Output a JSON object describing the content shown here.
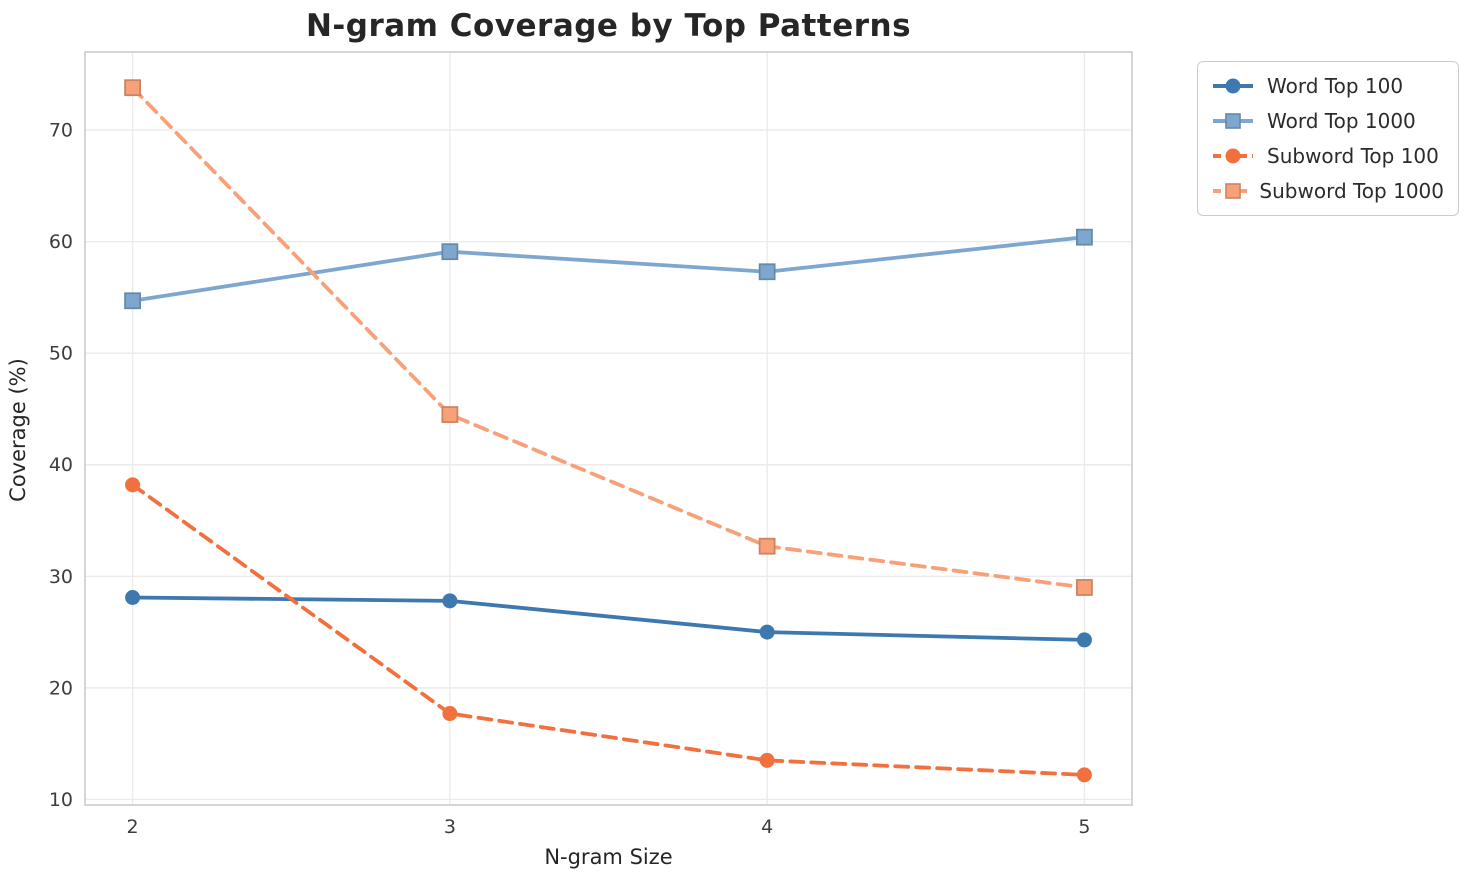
{
  "chart_data": {
    "type": "line",
    "title": "N-gram Coverage by Top Patterns",
    "xlabel": "N-gram Size",
    "ylabel": "Coverage (%)",
    "x": [
      2,
      3,
      4,
      5
    ],
    "x_tick_labels": [
      "2",
      "3",
      "4",
      "5"
    ],
    "y_ticks": [
      10,
      20,
      30,
      40,
      50,
      60,
      70
    ],
    "xlim": [
      1.85,
      5.15
    ],
    "ylim": [
      9.5,
      77.0
    ],
    "grid": true,
    "legend_position": "outside-upper-right",
    "series": [
      {
        "name": "Word Top 100",
        "values": [
          28.1,
          27.8,
          25.0,
          24.3
        ],
        "color": "#3d78af",
        "line_style": "solid",
        "marker": "circle"
      },
      {
        "name": "Word Top 1000",
        "values": [
          54.7,
          59.1,
          57.3,
          60.4
        ],
        "color": "#7ea7cf",
        "line_style": "solid",
        "marker": "square"
      },
      {
        "name": "Subword Top 100",
        "values": [
          38.2,
          17.7,
          13.5,
          12.2
        ],
        "color": "#f2703d",
        "line_style": "dashed",
        "marker": "circle"
      },
      {
        "name": "Subword Top 1000",
        "values": [
          73.8,
          44.5,
          32.7,
          29.0
        ],
        "color": "#f8a179",
        "line_style": "dashed",
        "marker": "square"
      }
    ],
    "style": {
      "grid_color": "#ebebeb",
      "spine_color": "#cccccc",
      "background": "#ffffff"
    }
  }
}
